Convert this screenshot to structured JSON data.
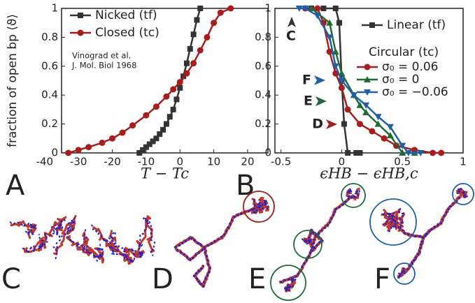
{
  "chart_data": [
    {
      "type": "line",
      "xlim": [
        -35,
        26
      ],
      "ylim": [
        0,
        1
      ],
      "xticks": [
        -40,
        -30,
        -20,
        -10,
        0,
        10,
        20
      ],
      "yticks": [
        0,
        0.2,
        0.4,
        0.6,
        0.8,
        1
      ],
      "xlabel": "T − Tc",
      "ylabel": "fraction of open bp ⟨ϑ⟩",
      "annotation": [
        "Vinograd et al.",
        "J. Mol. Biol 1968"
      ],
      "series": [
        {
          "name": "Nicked (tf)",
          "color": "#333333",
          "marker": "square",
          "x": [
            -12,
            -11,
            -10,
            -9,
            -8,
            -7,
            -6,
            -5,
            -4,
            -3,
            -2,
            -1,
            0,
            1,
            2,
            3,
            4,
            5,
            6
          ],
          "values": [
            0,
            0.02,
            0.04,
            0.06,
            0.08,
            0.1,
            0.13,
            0.16,
            0.2,
            0.25,
            0.3,
            0.37,
            0.45,
            0.53,
            0.62,
            0.72,
            0.82,
            0.92,
            1.0
          ]
        },
        {
          "name": "Closed (tc)",
          "color": "#a81c1c",
          "marker": "circle",
          "x": [
            -33,
            -30,
            -27,
            -23,
            -20,
            -17,
            -14,
            -10,
            -7,
            -4,
            -2,
            0,
            2,
            4,
            6,
            8,
            10,
            12,
            15
          ],
          "values": [
            0,
            0.02,
            0.04,
            0.07,
            0.1,
            0.14,
            0.19,
            0.26,
            0.32,
            0.39,
            0.44,
            0.49,
            0.55,
            0.62,
            0.71,
            0.8,
            0.9,
            0.97,
            1.0
          ]
        }
      ]
    },
    {
      "type": "line",
      "xlim": [
        -0.55,
        1.0
      ],
      "ylim": [
        0,
        1
      ],
      "xticks": [
        -0.5,
        0,
        0.5,
        1
      ],
      "yticks": [
        0,
        0.2,
        0.4,
        0.6,
        0.8,
        1
      ],
      "xlabel": "ϵHB − ϵHB,c",
      "legend_title": "Circular (tc)",
      "annotations": [
        {
          "text": "C",
          "color": "#333333"
        },
        {
          "text": "F",
          "color": "#1f5fa8"
        },
        {
          "text": "E",
          "color": "#1e6b3a"
        },
        {
          "text": "D",
          "color": "#a81c1c"
        }
      ],
      "series": [
        {
          "name": "Linear (tf)",
          "color": "#333333",
          "marker": "square",
          "x": [
            -0.25,
            -0.15,
            -0.05,
            -0.02,
            0,
            0.02,
            0.05,
            0.12,
            0.15
          ],
          "values": [
            1,
            1,
            1,
            0.9,
            0.5,
            0.2,
            0,
            0,
            0
          ]
        },
        {
          "name": "σ₀ = 0.06",
          "color": "#a81c1c",
          "marker": "circle",
          "x": [
            -0.3,
            -0.2,
            -0.15,
            -0.1,
            -0.05,
            0,
            0.05,
            0.15,
            0.25,
            0.35,
            0.45,
            0.6,
            0.75,
            0.82
          ],
          "values": [
            1,
            1,
            0.9,
            0.7,
            0.55,
            0.45,
            0.3,
            0.2,
            0.15,
            0.1,
            0.05,
            0.02,
            0,
            0
          ]
        },
        {
          "name": "σ₀ = 0",
          "color": "#1e6b3a",
          "marker": "triangle-up",
          "x": [
            -0.25,
            -0.1,
            -0.05,
            0,
            0.1,
            0.15,
            0.2,
            0.3,
            0.4,
            0.5,
            0.6
          ],
          "values": [
            1,
            0.9,
            0.7,
            0.55,
            0.4,
            0.33,
            0.28,
            0.2,
            0.12,
            0,
            0
          ]
        },
        {
          "name": "σ₀ = −0.06",
          "color": "#1f5fa8",
          "marker": "triangle-down",
          "x": [
            -0.35,
            -0.3,
            -0.2,
            -0.1,
            -0.05,
            0,
            0.1,
            0.2,
            0.3,
            0.4,
            0.5,
            0.55,
            0.65
          ],
          "values": [
            1,
            1,
            0.95,
            0.8,
            0.6,
            0.5,
            0.4,
            0.33,
            0.25,
            0.18,
            0.05,
            0,
            0
          ]
        }
      ]
    }
  ],
  "panels": [
    "A",
    "B",
    "C",
    "D",
    "E",
    "F"
  ]
}
